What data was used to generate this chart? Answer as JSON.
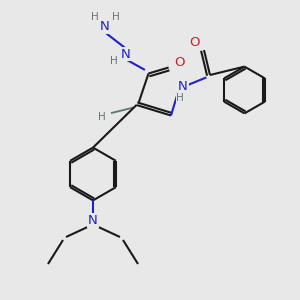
{
  "bg_color": "#e8e8e8",
  "bond_color": "#1a1a1a",
  "N_color": "#2020cc",
  "O_color": "#cc2020",
  "H_color": "#607878",
  "lw": 1.5,
  "fs": 9.5,
  "sfs": 7.5,
  "fig_w": 3.0,
  "fig_h": 3.0,
  "dpi": 100,
  "xlim": [
    0,
    10
  ],
  "ylim": [
    0,
    10
  ]
}
